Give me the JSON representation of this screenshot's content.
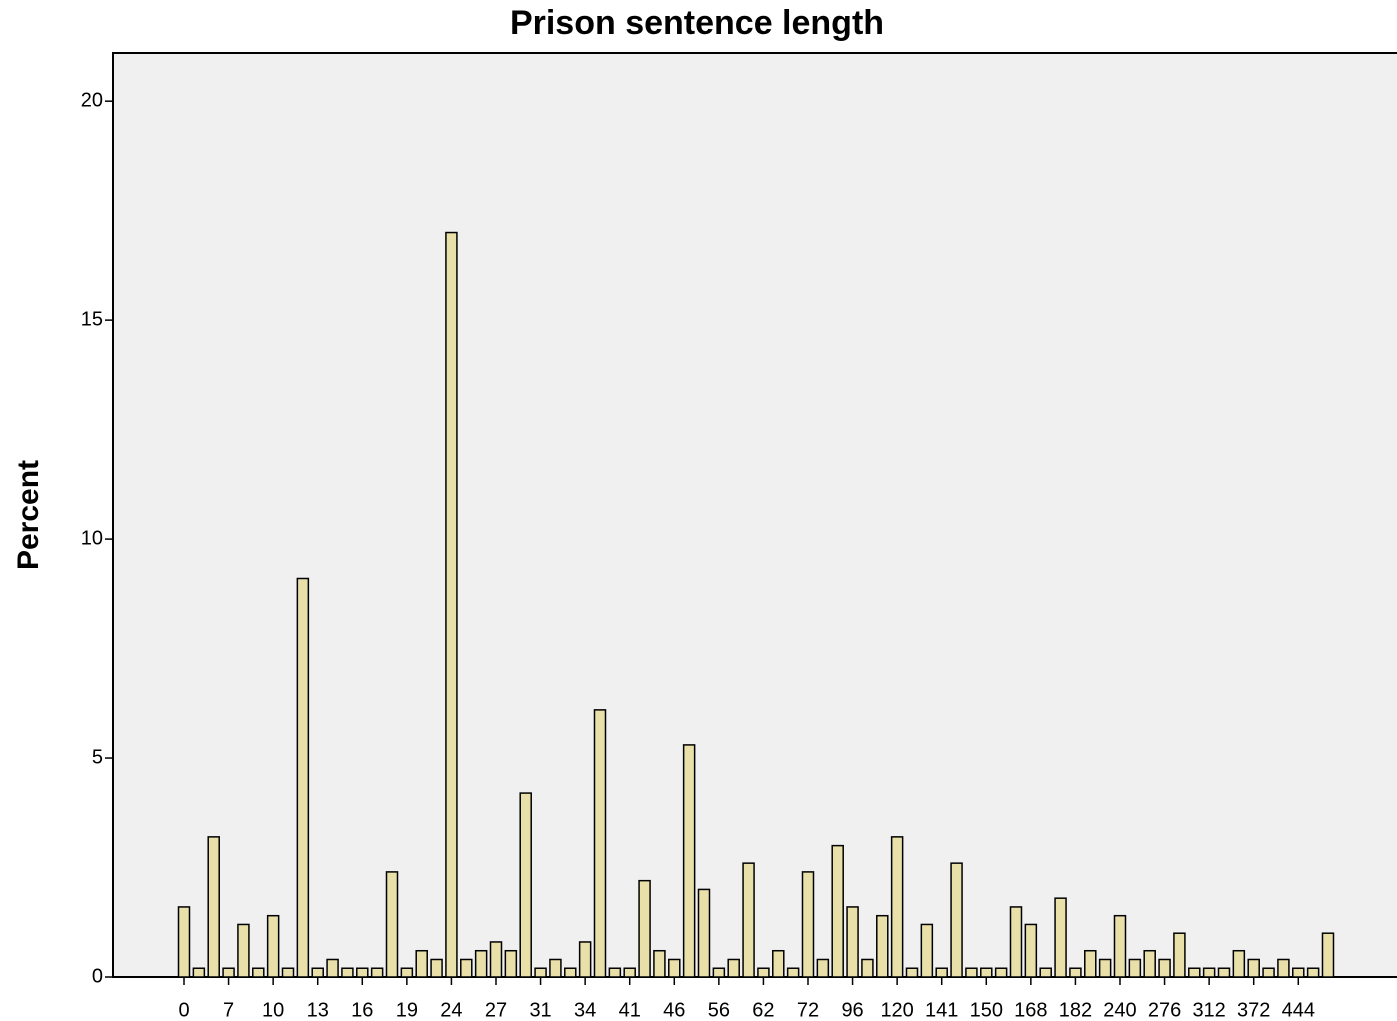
{
  "chart_data": {
    "type": "bar",
    "title": "Prison sentence length",
    "ylabel": "Percent",
    "categories": [
      "0",
      null,
      null,
      "7",
      null,
      null,
      "10",
      null,
      null,
      "13",
      null,
      null,
      "16",
      null,
      null,
      "19",
      null,
      null,
      "24",
      null,
      null,
      "27",
      null,
      null,
      "31",
      null,
      null,
      "34",
      null,
      null,
      "41",
      null,
      null,
      "46",
      null,
      null,
      "56",
      null,
      null,
      "62",
      null,
      null,
      "72",
      null,
      null,
      "96",
      null,
      null,
      "120",
      null,
      null,
      "141",
      null,
      null,
      "150",
      null,
      null,
      "168",
      null,
      null,
      "182",
      null,
      null,
      "240",
      null,
      null,
      "276",
      null,
      null,
      "312",
      null,
      null,
      "372",
      null,
      null,
      "444",
      null,
      null
    ],
    "values": [
      1.6,
      0.2,
      3.2,
      0.2,
      1.2,
      0.2,
      1.4,
      0.2,
      9.1,
      0.2,
      0.4,
      0.2,
      0.2,
      0.2,
      2.4,
      0.2,
      0.6,
      0.4,
      17.0,
      0.4,
      0.6,
      0.8,
      0.6,
      4.2,
      0.2,
      0.4,
      0.2,
      0.8,
      6.1,
      0.2,
      0.2,
      2.2,
      0.6,
      0.4,
      5.3,
      2.0,
      0.2,
      0.4,
      2.6,
      0.2,
      0.6,
      0.2,
      2.4,
      0.4,
      3.0,
      1.6,
      0.4,
      1.4,
      3.2,
      0.2,
      1.2,
      0.2,
      2.6,
      0.2,
      0.2,
      0.2,
      1.6,
      1.2,
      0.2,
      1.8,
      0.2,
      0.6,
      0.4,
      1.4,
      0.4,
      0.6,
      0.4,
      1.0,
      0.2,
      0.2,
      0.2,
      0.6,
      0.4,
      0.2,
      0.4,
      0.2,
      0.2,
      1.0
    ],
    "color": "#e8e0a8",
    "ylim": [
      0,
      21.1
    ],
    "yticks": [
      0,
      5,
      10,
      15,
      20
    ],
    "grid": false
  }
}
